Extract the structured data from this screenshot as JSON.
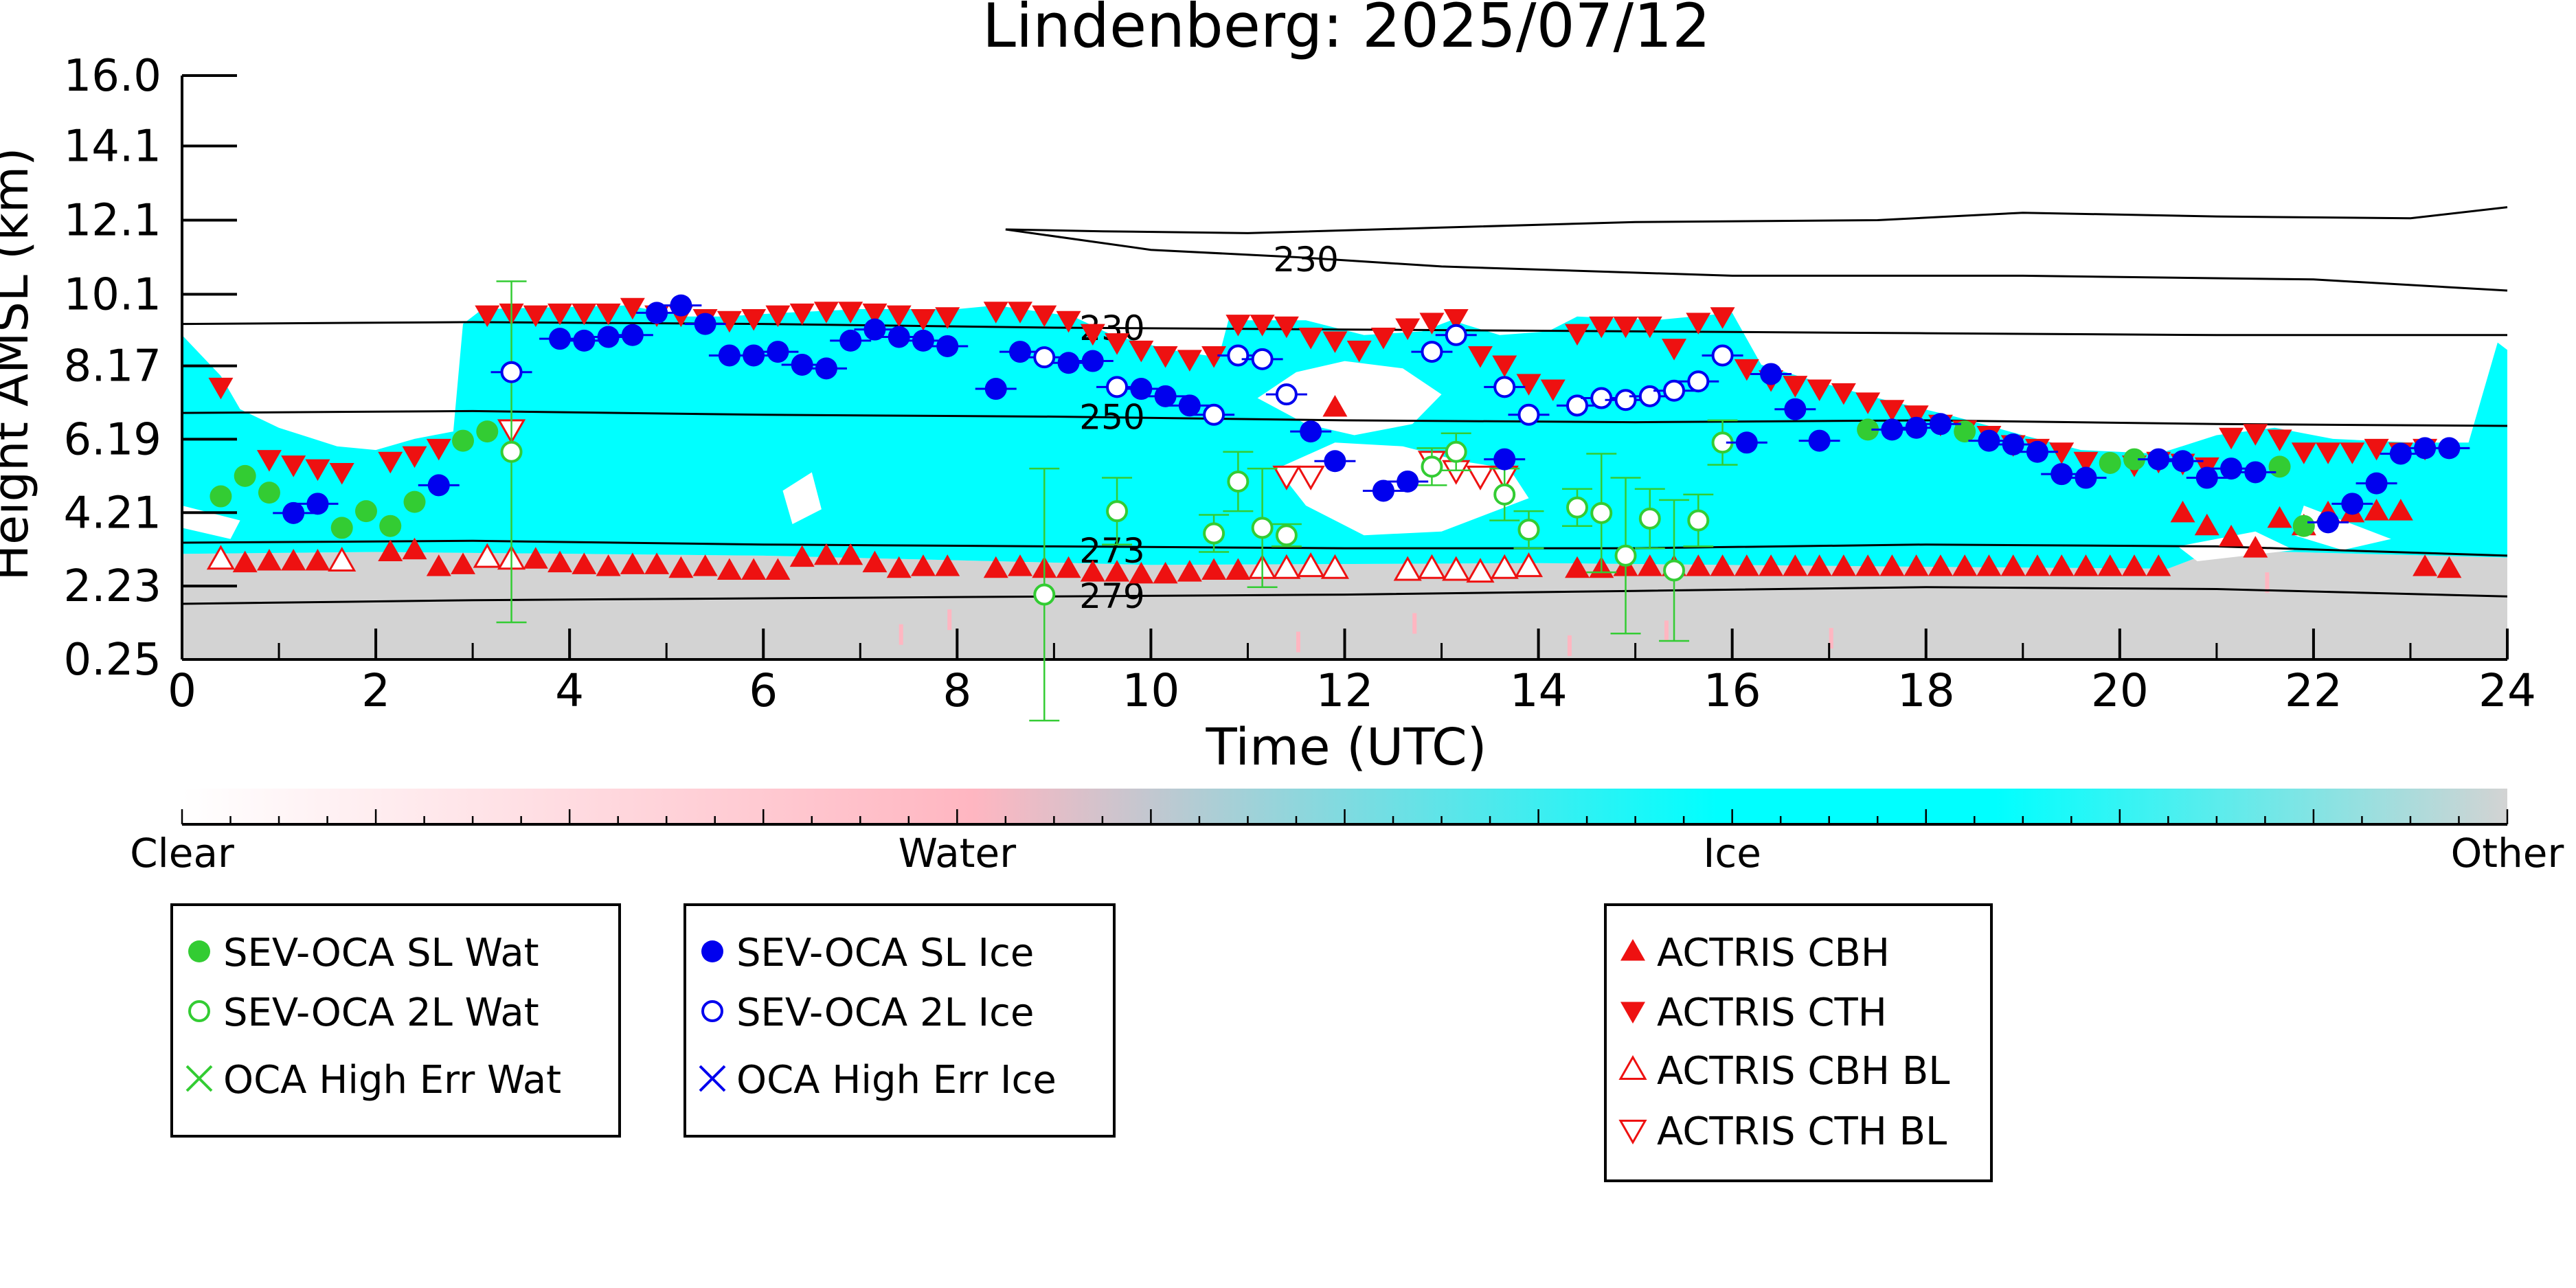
{
  "chart_data": {
    "type": "scatter",
    "title": "Lindenberg: 2025/07/12",
    "xlabel": "Time (UTC)",
    "ylabel": "Height AMSL (km)",
    "xlim": [
      0,
      24
    ],
    "ylim": [
      0.25,
      16.0
    ],
    "xticks": [
      "0",
      "2",
      "4",
      "6",
      "8",
      "10",
      "12",
      "14",
      "16",
      "18",
      "20",
      "22",
      "24"
    ],
    "yticks": [
      "0.25",
      "2.23",
      "4.21",
      "6.19",
      "8.17",
      "10.1",
      "12.1",
      "14.1",
      "16.0"
    ],
    "contour_labels": [
      {
        "text": "230",
        "x": 11.6,
        "y": 11.05
      },
      {
        "text": "230",
        "x": 9.6,
        "y": 9.2
      },
      {
        "text": "250",
        "x": 9.6,
        "y": 6.8
      },
      {
        "text": "273",
        "x": 9.6,
        "y": 3.2
      },
      {
        "text": "279",
        "x": 9.6,
        "y": 1.97
      }
    ],
    "colorbar": {
      "labels": [
        "Clear",
        "Water",
        "Ice",
        "Other"
      ],
      "colors": {
        "clear": "#ffffff",
        "water": "#ffb6c1",
        "ice": "#00ffff",
        "other": "#d3d3d3"
      }
    },
    "legend": {
      "group_water": [
        "SEV-OCA SL Wat",
        "SEV-OCA 2L Wat",
        "OCA High Err Wat"
      ],
      "group_ice": [
        "SEV-OCA SL Ice",
        "SEV-OCA 2L Ice",
        "OCA High Err Ice"
      ],
      "group_actris": [
        "ACTRIS CBH",
        "ACTRIS CTH",
        "ACTRIS CBH BL",
        "ACTRIS CTH BL"
      ]
    },
    "colors": {
      "water_marker": "#33cc33",
      "ice_marker": "#0000ee",
      "actris": "#ee1111",
      "errbar_water": "#33cc33",
      "errbar_ice": "#0000ee"
    },
    "series": [
      {
        "name": "SEV-OCA SL Wat",
        "marker": "circle-filled",
        "color": "#33cc33",
        "x": [
          0.4,
          0.65,
          0.9,
          1.65,
          1.9,
          2.15,
          2.4,
          2.9,
          3.15,
          17.4,
          18.4,
          19.9,
          20.15,
          21.65,
          21.9
        ],
        "y": [
          4.65,
          5.2,
          4.75,
          3.8,
          4.25,
          3.85,
          4.5,
          6.15,
          6.4,
          6.45,
          6.4,
          5.55,
          5.65,
          5.45,
          3.85
        ]
      },
      {
        "name": "SEV-OCA 2L Wat",
        "marker": "circle-open",
        "color": "#33cc33",
        "x": [
          3.4,
          8.9,
          9.65,
          10.65,
          10.9,
          11.15,
          11.4,
          12.9,
          13.15,
          13.65,
          13.9,
          14.4,
          14.65,
          14.9,
          15.15,
          15.4,
          15.65,
          15.9
        ],
        "y": [
          5.85,
          2.0,
          4.25,
          3.65,
          5.05,
          3.8,
          3.6,
          5.45,
          5.85,
          4.7,
          3.75,
          4.35,
          4.2,
          3.05,
          4.05,
          2.65,
          4.0,
          6.1
        ],
        "err": [
          4.6,
          3.4,
          0.9,
          0.5,
          0.8,
          1.6,
          0.3,
          0.5,
          0.5,
          0.7,
          0.5,
          0.5,
          1.6,
          2.1,
          0.8,
          1.9,
          0.7,
          0.6
        ]
      },
      {
        "name": "SEV-OCA SL Ice",
        "marker": "circle-filled",
        "color": "#0000ee",
        "x": [
          1.15,
          1.4,
          2.65,
          3.9,
          4.15,
          4.4,
          4.65,
          4.9,
          5.15,
          5.4,
          5.65,
          5.9,
          6.15,
          6.4,
          6.65,
          6.9,
          7.15,
          7.4,
          7.65,
          7.9,
          8.4,
          8.65,
          9.15,
          9.4,
          9.9,
          10.15,
          10.4,
          11.65,
          11.9,
          12.4,
          12.65,
          13.65,
          16.15,
          16.4,
          16.65,
          16.9,
          17.65,
          17.9,
          18.15,
          18.65,
          18.9,
          19.15,
          19.4,
          19.65,
          20.4,
          20.65,
          20.9,
          21.15,
          21.4,
          22.15,
          22.4,
          22.65,
          22.9,
          23.15,
          23.4
        ],
        "y": [
          4.2,
          4.45,
          4.95,
          8.9,
          8.85,
          8.95,
          9.0,
          9.6,
          9.8,
          9.3,
          8.45,
          8.45,
          8.55,
          8.2,
          8.1,
          8.85,
          9.15,
          8.95,
          8.85,
          8.7,
          7.55,
          8.55,
          8.25,
          8.3,
          7.55,
          7.35,
          7.1,
          6.4,
          5.6,
          4.8,
          5.05,
          5.65,
          6.1,
          7.95,
          7.0,
          6.15,
          6.45,
          6.5,
          6.6,
          6.15,
          6.05,
          5.85,
          5.25,
          5.15,
          5.65,
          5.6,
          5.15,
          5.4,
          5.3,
          3.95,
          4.45,
          5.0,
          5.8,
          5.95,
          5.95
        ]
      },
      {
        "name": "SEV-OCA 2L Ice",
        "marker": "circle-open",
        "color": "#0000ee",
        "x": [
          3.4,
          8.9,
          9.65,
          10.65,
          10.9,
          11.15,
          11.4,
          12.9,
          13.15,
          13.65,
          13.9,
          14.4,
          14.65,
          14.9,
          15.15,
          15.4,
          15.65,
          15.9
        ],
        "y": [
          8.0,
          8.4,
          7.6,
          6.85,
          8.45,
          8.35,
          7.4,
          8.55,
          9.0,
          7.6,
          6.85,
          7.1,
          7.3,
          7.25,
          7.35,
          7.5,
          7.75,
          8.45
        ]
      },
      {
        "name": "OCA High Err Wat",
        "marker": "x",
        "color": "#33cc33",
        "x": [],
        "y": []
      },
      {
        "name": "OCA High Err Ice",
        "marker": "x",
        "color": "#0000ee",
        "x": [],
        "y": []
      },
      {
        "name": "ACTRIS CBH",
        "marker": "triangle-up-filled",
        "color": "#ee1111",
        "x": [
          0.65,
          0.9,
          1.15,
          1.4,
          2.15,
          2.4,
          2.65,
          2.9,
          3.15,
          3.65,
          3.9,
          4.15,
          4.4,
          4.65,
          4.9,
          5.15,
          5.4,
          5.65,
          5.9,
          6.15,
          6.4,
          6.65,
          6.9,
          7.15,
          7.4,
          7.65,
          7.9,
          8.4,
          8.65,
          8.9,
          9.15,
          9.4,
          9.65,
          9.9,
          10.15,
          10.4,
          10.65,
          10.9,
          11.65,
          11.9,
          14.4,
          14.65,
          14.9,
          15.15,
          15.4,
          15.65,
          15.9,
          16.15,
          16.4,
          16.65,
          16.9,
          17.15,
          17.4,
          17.65,
          17.9,
          18.15,
          18.4,
          18.65,
          18.9,
          19.15,
          19.4,
          19.65,
          19.9,
          20.15,
          20.4,
          20.65,
          20.9,
          21.15,
          21.4,
          21.65,
          21.9,
          22.15,
          22.4,
          22.65,
          22.9,
          23.15,
          23.4
        ],
        "y": [
          2.85,
          2.9,
          2.9,
          2.9,
          3.15,
          3.2,
          2.75,
          2.8,
          3.0,
          2.95,
          2.85,
          2.8,
          2.75,
          2.8,
          2.8,
          2.7,
          2.75,
          2.65,
          2.65,
          2.65,
          3.0,
          3.05,
          3.05,
          2.85,
          2.7,
          2.75,
          2.75,
          2.7,
          2.75,
          2.7,
          2.7,
          2.6,
          2.6,
          2.55,
          2.55,
          2.6,
          2.65,
          2.65,
          2.75,
          7.05,
          2.7,
          2.7,
          2.75,
          2.75,
          2.75,
          2.75,
          2.75,
          2.75,
          2.75,
          2.75,
          2.75,
          2.75,
          2.75,
          2.75,
          2.75,
          2.75,
          2.75,
          2.75,
          2.75,
          2.75,
          2.75,
          2.75,
          2.75,
          2.75,
          2.75,
          4.2,
          3.85,
          3.55,
          3.25,
          4.05,
          3.85,
          4.2,
          4.2,
          4.25,
          4.25,
          2.75,
          2.7
        ]
      },
      {
        "name": "ACTRIS CTH",
        "marker": "triangle-down-filled",
        "color": "#ee1111",
        "x": [
          0.4,
          0.9,
          1.15,
          1.4,
          1.65,
          2.15,
          2.4,
          2.65,
          3.15,
          3.4,
          3.65,
          3.9,
          4.15,
          4.4,
          4.65,
          4.9,
          5.15,
          5.4,
          5.65,
          5.9,
          6.15,
          6.4,
          6.65,
          6.9,
          7.15,
          7.4,
          7.65,
          7.9,
          8.4,
          8.65,
          8.9,
          9.15,
          9.4,
          9.65,
          9.9,
          10.15,
          10.4,
          10.65,
          10.9,
          11.15,
          11.4,
          11.65,
          11.9,
          12.15,
          12.4,
          12.65,
          12.9,
          13.15,
          13.4,
          13.65,
          13.9,
          14.15,
          14.4,
          14.65,
          14.9,
          15.15,
          15.4,
          15.65,
          15.9,
          16.15,
          16.4,
          16.65,
          16.9,
          17.15,
          17.4,
          17.65,
          17.9,
          18.15,
          18.4,
          18.65,
          18.9,
          19.15,
          19.4,
          19.65,
          20.15,
          20.4,
          20.65,
          20.9,
          21.15,
          21.4,
          21.65,
          21.9,
          22.15,
          22.4,
          22.65,
          22.9,
          23.15
        ],
        "y": [
          7.6,
          5.65,
          5.5,
          5.4,
          5.3,
          5.6,
          5.75,
          5.95,
          9.55,
          9.6,
          9.55,
          9.6,
          9.6,
          9.6,
          9.75,
          9.55,
          9.55,
          9.45,
          9.4,
          9.45,
          9.55,
          9.6,
          9.65,
          9.65,
          9.6,
          9.55,
          9.45,
          9.5,
          9.65,
          9.65,
          9.55,
          9.4,
          9.05,
          8.8,
          8.6,
          8.45,
          8.35,
          8.45,
          9.3,
          9.3,
          9.25,
          8.95,
          8.85,
          8.6,
          8.95,
          9.2,
          9.35,
          9.45,
          8.45,
          8.2,
          7.7,
          7.55,
          9.05,
          9.25,
          9.25,
          9.25,
          8.65,
          9.35,
          9.5,
          8.1,
          7.8,
          7.65,
          7.55,
          7.45,
          7.2,
          7.0,
          6.85,
          6.6,
          6.45,
          6.3,
          6.05,
          5.95,
          5.85,
          5.6,
          5.5,
          5.6,
          5.55,
          5.45,
          6.25,
          6.35,
          6.2,
          5.85,
          5.85,
          5.85,
          5.95,
          5.85,
          5.95
        ]
      },
      {
        "name": "ACTRIS CBH BL",
        "marker": "triangle-up-open",
        "color": "#ee1111",
        "x": [
          0.4,
          1.65,
          3.15,
          3.4,
          11.15,
          11.4,
          11.65,
          11.9,
          12.65,
          12.9,
          13.15,
          13.4,
          13.65,
          13.9
        ],
        "y": [
          2.95,
          2.9,
          3.0,
          2.95,
          2.7,
          2.7,
          2.75,
          2.7,
          2.65,
          2.7,
          2.65,
          2.6,
          2.7,
          2.75
        ]
      },
      {
        "name": "ACTRIS CTH BL",
        "marker": "triangle-down-open",
        "color": "#ee1111",
        "x": [
          3.4,
          11.4,
          11.65,
          12.9,
          13.15,
          13.4,
          13.65
        ],
        "y": [
          6.45,
          5.2,
          5.2,
          5.6,
          5.35,
          5.2,
          5.2
        ]
      }
    ]
  }
}
